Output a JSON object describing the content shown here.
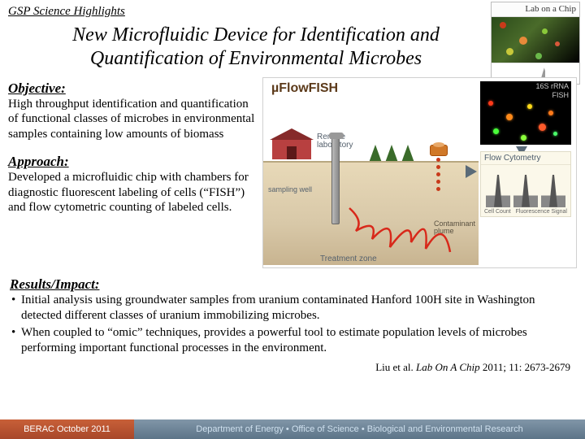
{
  "header": {
    "program": "GSP Science Highlights"
  },
  "journal_badge": {
    "title": "Lab on a Chip",
    "bg_blobs": [
      {
        "t": 6,
        "l": 10,
        "s": 8,
        "c": "#c83a1a"
      },
      {
        "t": 24,
        "l": 34,
        "s": 10,
        "c": "#e88a3a"
      },
      {
        "t": 14,
        "l": 62,
        "s": 7,
        "c": "#8ac83a"
      },
      {
        "t": 38,
        "l": 18,
        "s": 9,
        "c": "#c8c83a"
      },
      {
        "t": 30,
        "l": 78,
        "s": 6,
        "c": "#d8583a"
      },
      {
        "t": 44,
        "l": 54,
        "s": 8,
        "c": "#6ab84a"
      }
    ]
  },
  "title": "New Microfluidic Device for Identification and Quantification of Environmental Microbes",
  "objective": {
    "heading": "Objective:",
    "text": "High throughput identification and quantification of functional classes of microbes in environmental samples containing low amounts of biomass"
  },
  "approach": {
    "heading": "Approach:",
    "text": "Developed a microfluidic chip with chambers for diagnostic fluorescent labeling of cells (“FISH”) and flow cytometric counting of labeled cells."
  },
  "results": {
    "heading": "Results/Impact:",
    "items": [
      "Initial analysis using groundwater samples from uranium contaminated Hanford 100H site in Washington detected different classes of uranium immobilizing microbes.",
      "When coupled to “omic” techniques, provides a powerful tool to estimate population levels of microbes performing important functional processes in the environment."
    ]
  },
  "diagram": {
    "title": "µFlowFISH",
    "fish_label_top": "16S rRNA",
    "fish_label_bot": "FISH",
    "fish_dots": [
      {
        "t": 6,
        "l": 8,
        "s": 6,
        "c": "#ff3a1a"
      },
      {
        "t": 22,
        "l": 30,
        "s": 8,
        "c": "#ff8a1a"
      },
      {
        "t": 40,
        "l": 14,
        "s": 7,
        "c": "#4aff3a"
      },
      {
        "t": 10,
        "l": 56,
        "s": 6,
        "c": "#ffda1a"
      },
      {
        "t": 34,
        "l": 70,
        "s": 9,
        "c": "#ff5a2a"
      },
      {
        "t": 48,
        "l": 48,
        "s": 7,
        "c": "#8aff3a"
      },
      {
        "t": 18,
        "l": 82,
        "s": 6,
        "c": "#ff7a1a"
      },
      {
        "t": 44,
        "l": 88,
        "s": 5,
        "c": "#4aff6a"
      }
    ],
    "cyto_header": "Flow Cytometry",
    "cyto_y": "Cell Count",
    "cyto_x": "Fluorescence Signal",
    "remote_lab": "Remote\nlaboratory",
    "sampling_well": "sampling well",
    "contaminant": "Contaminant\nplume",
    "treatment_zone": "Treatment zone",
    "plume_color": "#d8281a"
  },
  "citation": {
    "authors": "Liu et al.",
    "journal": "Lab On A Chip",
    "rest": " 2011; 11: 2673-2679"
  },
  "footer": {
    "left": "BERAC October 2011",
    "right": "Department of Energy  •  Office of Science  •  Biological and Environmental Research"
  }
}
